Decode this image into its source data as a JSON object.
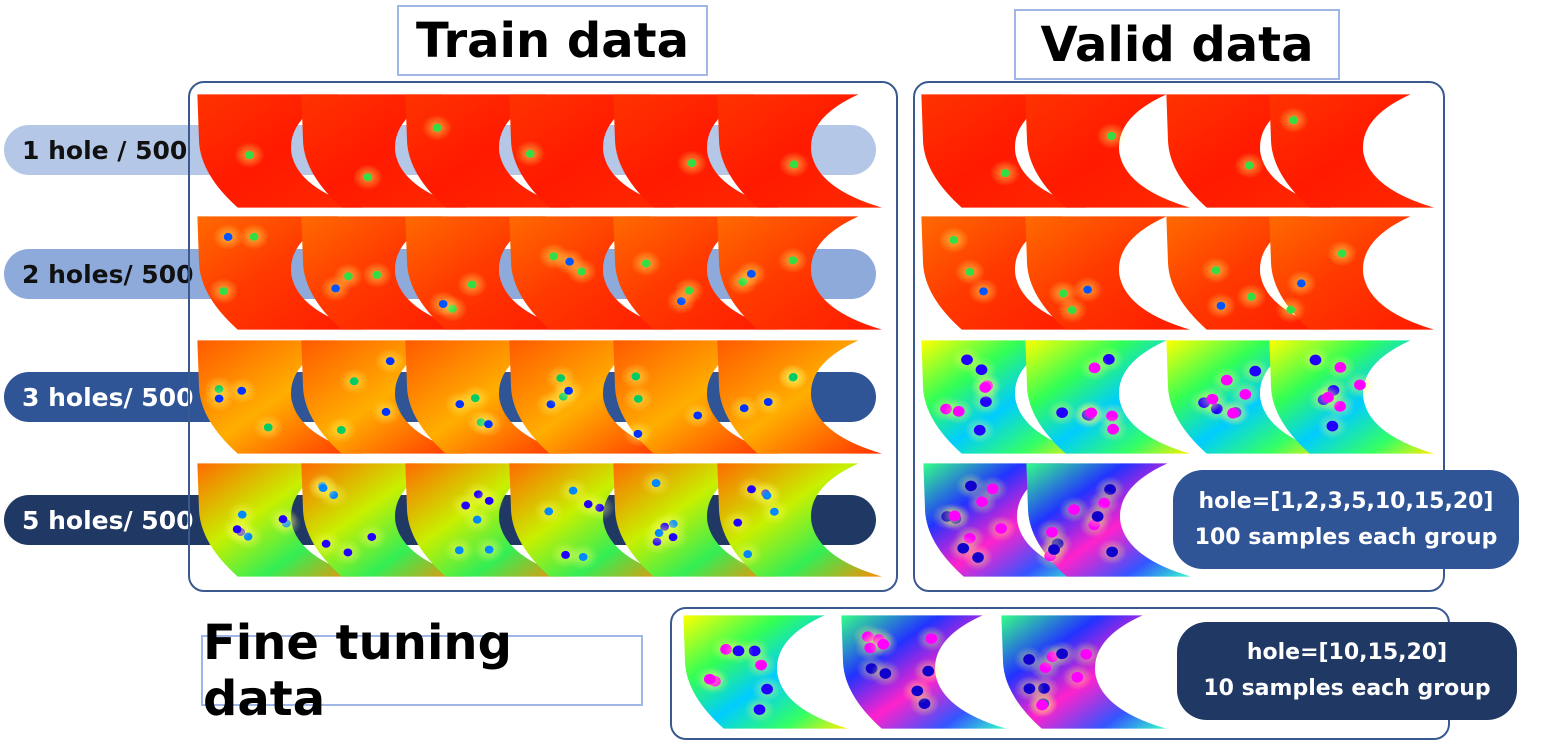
{
  "titles": {
    "train": "Train data",
    "valid": "Valid data",
    "fine": "Fine tuning data"
  },
  "train_rows": [
    {
      "label": "1 hole / 500",
      "pill_color": "#b4c7e7",
      "text_color": "#111111",
      "field": "red"
    },
    {
      "label": "2 holes/ 500",
      "pill_color": "#8eaadb",
      "text_color": "#111111",
      "field": "orange"
    },
    {
      "label": "3 holes/ 500",
      "pill_color": "#2f5597",
      "text_color": "#ffffff",
      "field": "yellow"
    },
    {
      "label": "5 holes/ 500",
      "pill_color": "#203864",
      "text_color": "#ffffff",
      "field": "green"
    }
  ],
  "valid_info": {
    "line1": "hole=[1,2,3,5,10,15,20]",
    "line2": "100 samples each group",
    "color": "#2f5597"
  },
  "fine_info": {
    "line1": "hole=[10,15,20]",
    "line2": "10 samples each group",
    "color": "#203864"
  },
  "valid_rows": [
    {
      "field": "red"
    },
    {
      "field": "orange"
    },
    {
      "field": "rainbow"
    },
    {
      "field": "magenta"
    }
  ],
  "fine_fields": [
    "rainbow",
    "magenta",
    "magenta"
  ]
}
